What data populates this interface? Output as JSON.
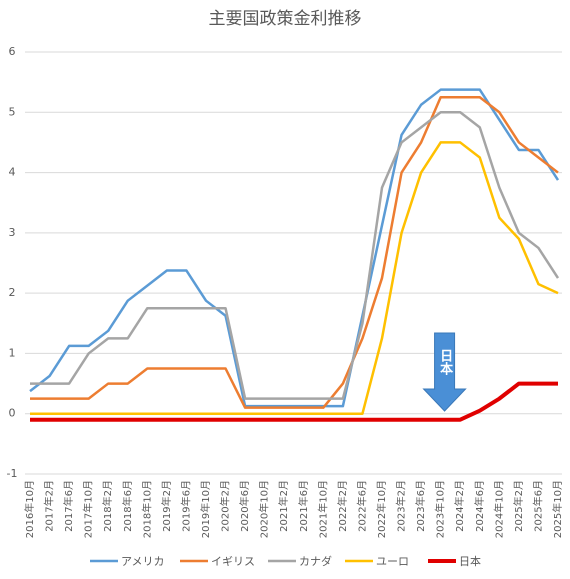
{
  "chart_data": {
    "type": "line",
    "title": "主要国政策金利推移",
    "categories": [
      "2016年10月",
      "2017年2月",
      "2017年6月",
      "2017年10月",
      "2018年2月",
      "2018年6月",
      "2018年10月",
      "2019年2月",
      "2019年6月",
      "2019年10月",
      "2020年2月",
      "2020年6月",
      "2020年10月",
      "2021年2月",
      "2021年6月",
      "2021年10月",
      "2022年2月",
      "2022年6月",
      "2022年10月",
      "2023年2月",
      "2023年6月",
      "2023年10月",
      "2024年2月",
      "2024年6月",
      "2024年10月",
      "2025年2月",
      "2025年6月",
      "2025年10月"
    ],
    "series": [
      {
        "name": "アメリカ",
        "color": "#5b9bd5",
        "values": [
          0.375,
          0.625,
          1.125,
          1.125,
          1.375,
          1.875,
          2.125,
          2.375,
          2.375,
          1.875,
          1.625,
          0.125,
          0.125,
          0.125,
          0.125,
          0.125,
          0.125,
          1.625,
          3.125,
          4.625,
          5.125,
          5.375,
          5.375,
          5.375,
          4.875,
          4.375,
          4.375,
          3.875
        ]
      },
      {
        "name": "イギリス",
        "color": "#ed7d31",
        "values": [
          0.25,
          0.25,
          0.25,
          0.25,
          0.5,
          0.5,
          0.75,
          0.75,
          0.75,
          0.75,
          0.75,
          0.1,
          0.1,
          0.1,
          0.1,
          0.1,
          0.5,
          1.25,
          2.25,
          4.0,
          4.5,
          5.25,
          5.25,
          5.25,
          5.0,
          4.5,
          4.25,
          4.0
        ]
      },
      {
        "name": "カナダ",
        "color": "#a5a5a5",
        "values": [
          0.5,
          0.5,
          0.5,
          1.0,
          1.25,
          1.25,
          1.75,
          1.75,
          1.75,
          1.75,
          1.75,
          0.25,
          0.25,
          0.25,
          0.25,
          0.25,
          0.25,
          1.5,
          3.75,
          4.5,
          4.75,
          5.0,
          5.0,
          4.75,
          3.75,
          3.0,
          2.75,
          2.25
        ]
      },
      {
        "name": "ユーロ",
        "color": "#ffc000",
        "values": [
          0,
          0,
          0,
          0,
          0,
          0,
          0,
          0,
          0,
          0,
          0,
          0,
          0,
          0,
          0,
          0,
          0,
          0,
          1.25,
          3.0,
          4.0,
          4.5,
          4.5,
          4.25,
          3.25,
          2.9,
          2.15,
          2.0
        ]
      },
      {
        "name": "日本",
        "color": "#e00000",
        "values": [
          -0.1,
          -0.1,
          -0.1,
          -0.1,
          -0.1,
          -0.1,
          -0.1,
          -0.1,
          -0.1,
          -0.1,
          -0.1,
          -0.1,
          -0.1,
          -0.1,
          -0.1,
          -0.1,
          -0.1,
          -0.1,
          -0.1,
          -0.1,
          -0.1,
          -0.1,
          -0.1,
          0.05,
          0.25,
          0.5,
          0.5,
          0.5
        ]
      }
    ],
    "ylim": [
      -1,
      6
    ],
    "yticks": [
      -1,
      0,
      1,
      2,
      3,
      4,
      5,
      6
    ],
    "grid": true,
    "annotation": "日本",
    "legend": "bottom"
  }
}
